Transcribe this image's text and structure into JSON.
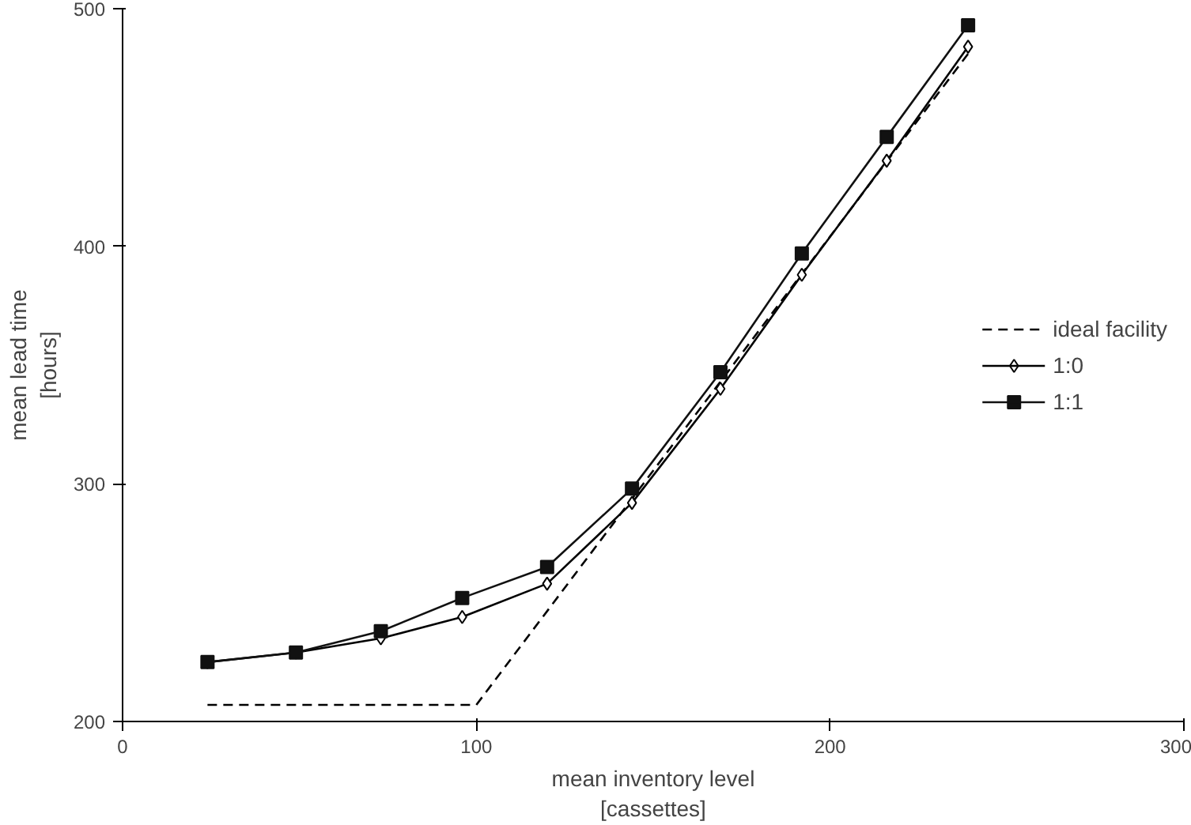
{
  "chart_data": {
    "type": "line",
    "xlabel": "mean inventory level\n[cassettes]",
    "ylabel": "mean lead time\n[hours]",
    "xlim": [
      0,
      300
    ],
    "ylim": [
      200,
      500
    ],
    "xticks": [
      0,
      100,
      200,
      300
    ],
    "yticks": [
      200,
      300,
      400,
      500
    ],
    "grid": false,
    "legend": "right",
    "series": [
      {
        "name": "ideal facility",
        "color": "#000000",
        "line_style": "dashed",
        "marker": "none",
        "x": [
          24,
          100,
          240
        ],
        "values": [
          207,
          207,
          483
        ]
      },
      {
        "name": "1:0",
        "color": "#000000",
        "line_style": "solid",
        "marker": "diamond",
        "x": [
          24,
          49,
          73,
          96,
          120,
          144,
          169,
          192,
          216,
          239
        ],
        "values": [
          225,
          229,
          235,
          244,
          258,
          292,
          340,
          388,
          436,
          484
        ]
      },
      {
        "name": "1:1",
        "color": "#111111",
        "line_style": "solid",
        "marker": "square",
        "x": [
          24,
          49,
          73,
          96,
          120,
          144,
          169,
          192,
          216,
          239
        ],
        "values": [
          225,
          229,
          238,
          252,
          265,
          298,
          347,
          397,
          446,
          493
        ]
      }
    ]
  }
}
